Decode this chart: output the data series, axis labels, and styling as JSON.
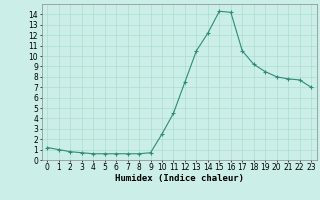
{
  "x": [
    0,
    1,
    2,
    3,
    4,
    5,
    6,
    7,
    8,
    9,
    10,
    11,
    12,
    13,
    14,
    15,
    16,
    17,
    18,
    19,
    20,
    21,
    22,
    23
  ],
  "y": [
    1.2,
    1.0,
    0.8,
    0.7,
    0.6,
    0.6,
    0.6,
    0.6,
    0.6,
    0.7,
    2.5,
    4.5,
    7.5,
    10.5,
    12.2,
    14.3,
    14.2,
    10.5,
    9.2,
    8.5,
    8.0,
    7.8,
    7.7,
    7.0
  ],
  "line_color": "#2e8b7a",
  "marker": "+",
  "marker_size": 3,
  "bg_color": "#cceee8",
  "grid_major_color": "#aaddcc",
  "grid_minor_color": "#bbdddd",
  "xlabel": "Humidex (Indice chaleur)",
  "xlim": [
    -0.5,
    23.5
  ],
  "ylim": [
    0,
    15
  ],
  "yticks": [
    0,
    1,
    2,
    3,
    4,
    5,
    6,
    7,
    8,
    9,
    10,
    11,
    12,
    13,
    14
  ],
  "xticks": [
    0,
    1,
    2,
    3,
    4,
    5,
    6,
    7,
    8,
    9,
    10,
    11,
    12,
    13,
    14,
    15,
    16,
    17,
    18,
    19,
    20,
    21,
    22,
    23
  ],
  "tick_fontsize": 5.5,
  "label_fontsize": 6.5
}
